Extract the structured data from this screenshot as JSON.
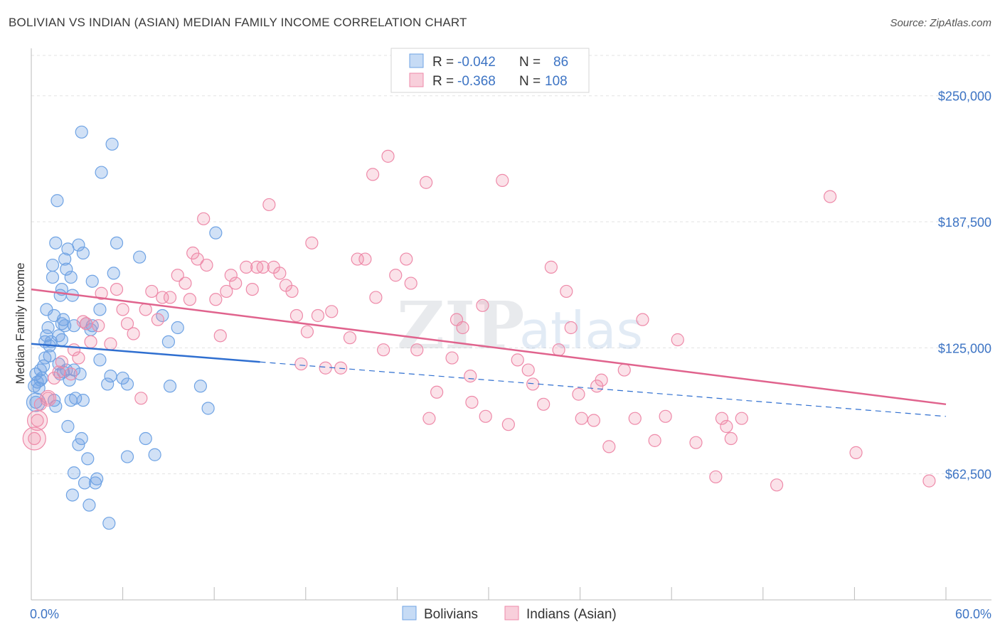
{
  "title": "BOLIVIAN VS INDIAN (ASIAN) MEDIAN FAMILY INCOME CORRELATION CHART",
  "source": "Source: ZipAtlas.com",
  "watermark": {
    "zip": "ZIP",
    "atlas": "atlas"
  },
  "legend": {
    "rows": [
      {
        "r_label": "R = ",
        "r_value": "-0.042",
        "n_label": "N = ",
        "n_value": "86"
      },
      {
        "r_label": "R = ",
        "r_value": "-0.368",
        "n_label": "N = ",
        "n_value": "108"
      }
    ]
  },
  "bottom_legend": [
    "Bolivians",
    "Indians (Asian)"
  ],
  "chart_data": {
    "type": "scatter",
    "title": "BOLIVIAN VS INDIAN (ASIAN) MEDIAN FAMILY INCOME CORRELATION CHART",
    "xlabel": "",
    "ylabel": "Median Family Income",
    "xlim": [
      0,
      60
    ],
    "ylim": [
      0,
      270000
    ],
    "x_tick_labels": [
      "0.0%",
      "60.0%"
    ],
    "y_ticks": [
      62500,
      125000,
      187500,
      250000
    ],
    "y_tick_labels": [
      "$62,500",
      "$125,000",
      "$187,500",
      "$250,000"
    ],
    "colors": {
      "bolivians": "#6fa3e4",
      "indians": "#ee8aa9",
      "bolivians_line": "#2f6fd0",
      "indians_line": "#e0638d",
      "tick": "#3d74c4"
    },
    "series": [
      {
        "name": "Bolivians",
        "R": -0.042,
        "N": 86,
        "trend": {
          "x0": 0,
          "y0": 127000,
          "x1": 15,
          "y1": 118000,
          "dash_x1": 60,
          "dash_y1": 91000
        },
        "points": [
          [
            0.3,
            112000
          ],
          [
            0.4,
            108000
          ],
          [
            0.5,
            105000
          ],
          [
            0.6,
            114000
          ],
          [
            0.7,
            110000
          ],
          [
            0.8,
            116000
          ],
          [
            0.9,
            120000
          ],
          [
            1.0,
            131000
          ],
          [
            1.1,
            135000
          ],
          [
            1.2,
            126000
          ],
          [
            1.0,
            144000
          ],
          [
            1.3,
            128000
          ],
          [
            1.2,
            121000
          ],
          [
            1.5,
            99000
          ],
          [
            1.6,
            96000
          ],
          [
            1.8,
            117000
          ],
          [
            1.9,
            112000
          ],
          [
            2.0,
            137000
          ],
          [
            2.1,
            139000
          ],
          [
            2.2,
            136000
          ],
          [
            1.4,
            160000
          ],
          [
            1.4,
            166000
          ],
          [
            1.5,
            141000
          ],
          [
            1.6,
            177000
          ],
          [
            1.9,
            151000
          ],
          [
            2.0,
            154000
          ],
          [
            2.2,
            169000
          ],
          [
            2.3,
            164000
          ],
          [
            2.4,
            174000
          ],
          [
            2.6,
            160000
          ],
          [
            2.7,
            151000
          ],
          [
            2.8,
            136000
          ],
          [
            3.1,
            176000
          ],
          [
            3.4,
            172000
          ],
          [
            3.6,
            137000
          ],
          [
            2.1,
            113000
          ],
          [
            2.3,
            114000
          ],
          [
            2.5,
            109000
          ],
          [
            2.8,
            114000
          ],
          [
            3.2,
            112000
          ],
          [
            2.4,
            86000
          ],
          [
            2.6,
            99000
          ],
          [
            2.9,
            100000
          ],
          [
            3.4,
            99000
          ],
          [
            3.3,
            80000
          ],
          [
            3.1,
            77000
          ],
          [
            3.7,
            70000
          ],
          [
            2.8,
            63000
          ],
          [
            3.5,
            58000
          ],
          [
            4.2,
            58000
          ],
          [
            4.3,
            60000
          ],
          [
            2.7,
            52000
          ],
          [
            3.8,
            47000
          ],
          [
            5.1,
            38000
          ],
          [
            3.3,
            232000
          ],
          [
            5.3,
            226000
          ],
          [
            4.6,
            212000
          ],
          [
            1.7,
            198000
          ],
          [
            4.0,
            158000
          ],
          [
            4.5,
            144000
          ],
          [
            5.4,
            162000
          ],
          [
            5.6,
            177000
          ],
          [
            4.0,
            136000
          ],
          [
            3.9,
            134000
          ],
          [
            4.5,
            119000
          ],
          [
            5.0,
            107000
          ],
          [
            5.2,
            111000
          ],
          [
            6.0,
            110000
          ],
          [
            6.3,
            107000
          ],
          [
            7.1,
            170000
          ],
          [
            7.5,
            80000
          ],
          [
            6.3,
            71000
          ],
          [
            8.1,
            72000
          ],
          [
            8.6,
            141000
          ],
          [
            9.0,
            128000
          ],
          [
            9.1,
            106000
          ],
          [
            9.6,
            135000
          ],
          [
            11.1,
            106000
          ],
          [
            11.6,
            95000
          ],
          [
            12.1,
            182000
          ],
          [
            0.2,
            106000
          ],
          [
            0.3,
            98000
          ],
          [
            0.6,
            109000
          ],
          [
            0.9,
            128000
          ],
          [
            2.0,
            129000
          ],
          [
            1.8,
            131000
          ]
        ]
      },
      {
        "name": "Indians (Asian)",
        "R": -0.368,
        "N": 108,
        "trend": {
          "x0": 0,
          "y0": 154000,
          "x1": 60,
          "y1": 97000
        },
        "points": [
          [
            0.2,
            80000
          ],
          [
            0.4,
            89000
          ],
          [
            0.6,
            97000
          ],
          [
            1.1,
            100000
          ],
          [
            1.5,
            110000
          ],
          [
            1.8,
            113000
          ],
          [
            2.0,
            118000
          ],
          [
            2.6,
            112000
          ],
          [
            2.8,
            124000
          ],
          [
            3.1,
            120000
          ],
          [
            3.4,
            138000
          ],
          [
            3.6,
            137000
          ],
          [
            3.9,
            128000
          ],
          [
            4.4,
            136000
          ],
          [
            4.6,
            152000
          ],
          [
            5.2,
            127000
          ],
          [
            5.6,
            154000
          ],
          [
            6.0,
            144000
          ],
          [
            6.3,
            137000
          ],
          [
            6.7,
            132000
          ],
          [
            7.2,
            100000
          ],
          [
            7.5,
            144000
          ],
          [
            7.9,
            153000
          ],
          [
            8.3,
            139000
          ],
          [
            8.6,
            150000
          ],
          [
            9.1,
            150000
          ],
          [
            9.6,
            161000
          ],
          [
            10.1,
            157000
          ],
          [
            10.4,
            149000
          ],
          [
            10.6,
            172000
          ],
          [
            10.9,
            169000
          ],
          [
            11.5,
            166000
          ],
          [
            12.1,
            149000
          ],
          [
            11.3,
            189000
          ],
          [
            12.4,
            131000
          ],
          [
            12.8,
            153000
          ],
          [
            13.1,
            161000
          ],
          [
            13.4,
            157000
          ],
          [
            14.1,
            165000
          ],
          [
            14.5,
            154000
          ],
          [
            14.8,
            165000
          ],
          [
            15.2,
            165000
          ],
          [
            15.6,
            196000
          ],
          [
            15.9,
            165000
          ],
          [
            16.3,
            162000
          ],
          [
            16.7,
            156000
          ],
          [
            17.1,
            153000
          ],
          [
            17.4,
            141000
          ],
          [
            17.7,
            117000
          ],
          [
            18.1,
            133000
          ],
          [
            18.4,
            177000
          ],
          [
            18.8,
            141000
          ],
          [
            19.3,
            115000
          ],
          [
            19.7,
            143000
          ],
          [
            20.3,
            115000
          ],
          [
            20.9,
            130000
          ],
          [
            21.4,
            169000
          ],
          [
            21.9,
            169000
          ],
          [
            22.4,
            211000
          ],
          [
            22.6,
            150000
          ],
          [
            23.1,
            124000
          ],
          [
            23.4,
            220000
          ],
          [
            23.9,
            161000
          ],
          [
            24.6,
            169000
          ],
          [
            24.9,
            157000
          ],
          [
            25.3,
            124000
          ],
          [
            25.9,
            207000
          ],
          [
            26.1,
            90000
          ],
          [
            26.6,
            103000
          ],
          [
            27.6,
            120000
          ],
          [
            27.9,
            139000
          ],
          [
            28.3,
            135000
          ],
          [
            28.8,
            111000
          ],
          [
            28.9,
            98000
          ],
          [
            29.6,
            146000
          ],
          [
            29.8,
            91000
          ],
          [
            30.9,
            208000
          ],
          [
            31.3,
            87000
          ],
          [
            31.9,
            119000
          ],
          [
            32.6,
            114000
          ],
          [
            32.9,
            107000
          ],
          [
            33.6,
            97000
          ],
          [
            34.1,
            165000
          ],
          [
            34.6,
            124000
          ],
          [
            35.1,
            153000
          ],
          [
            35.4,
            135000
          ],
          [
            35.9,
            102000
          ],
          [
            36.1,
            90000
          ],
          [
            36.9,
            89000
          ],
          [
            37.1,
            106000
          ],
          [
            37.4,
            109000
          ],
          [
            37.9,
            76000
          ],
          [
            38.9,
            114000
          ],
          [
            39.6,
            90000
          ],
          [
            40.1,
            139000
          ],
          [
            40.9,
            79000
          ],
          [
            41.6,
            91000
          ],
          [
            42.4,
            129000
          ],
          [
            43.6,
            78000
          ],
          [
            44.9,
            61000
          ],
          [
            45.6,
            86000
          ],
          [
            45.9,
            80000
          ],
          [
            46.6,
            90000
          ],
          [
            48.9,
            57000
          ],
          [
            52.4,
            200000
          ],
          [
            54.1,
            73000
          ],
          [
            58.9,
            59000
          ],
          [
            45.3,
            90000
          ]
        ]
      }
    ]
  }
}
